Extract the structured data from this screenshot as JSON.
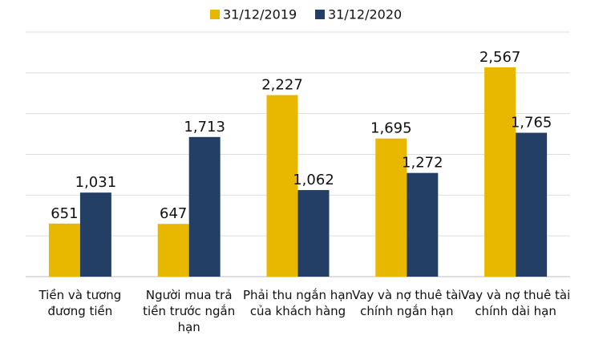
{
  "chart_data": {
    "type": "bar",
    "categories": [
      "Tiền và tương đương tiền",
      "Người mua trả tiền trước ngắn hạn",
      "Phải thu ngắn hạn của khách hàng",
      "Vay và nợ thuê tài chính ngắn hạn",
      "Vay và nợ thuê tài chính dài hạn"
    ],
    "series": [
      {
        "name": "31/12/2019",
        "color": "#e8b800",
        "values": [
          651,
          647,
          2227,
          1695,
          2567
        ],
        "value_labels": [
          "651",
          "647",
          "2,227",
          "1,695",
          "2,567"
        ]
      },
      {
        "name": "31/12/2020",
        "color": "#243f66",
        "values": [
          1031,
          1713,
          1062,
          1272,
          1765
        ],
        "value_labels": [
          "1,031",
          "1,713",
          "1,062",
          "1,272",
          "1,765"
        ]
      }
    ],
    "ylim": [
      0,
      3000
    ],
    "yticks": [
      0,
      500,
      1000,
      1500,
      2000,
      2500,
      3000
    ],
    "grid": true,
    "legend": "top"
  }
}
